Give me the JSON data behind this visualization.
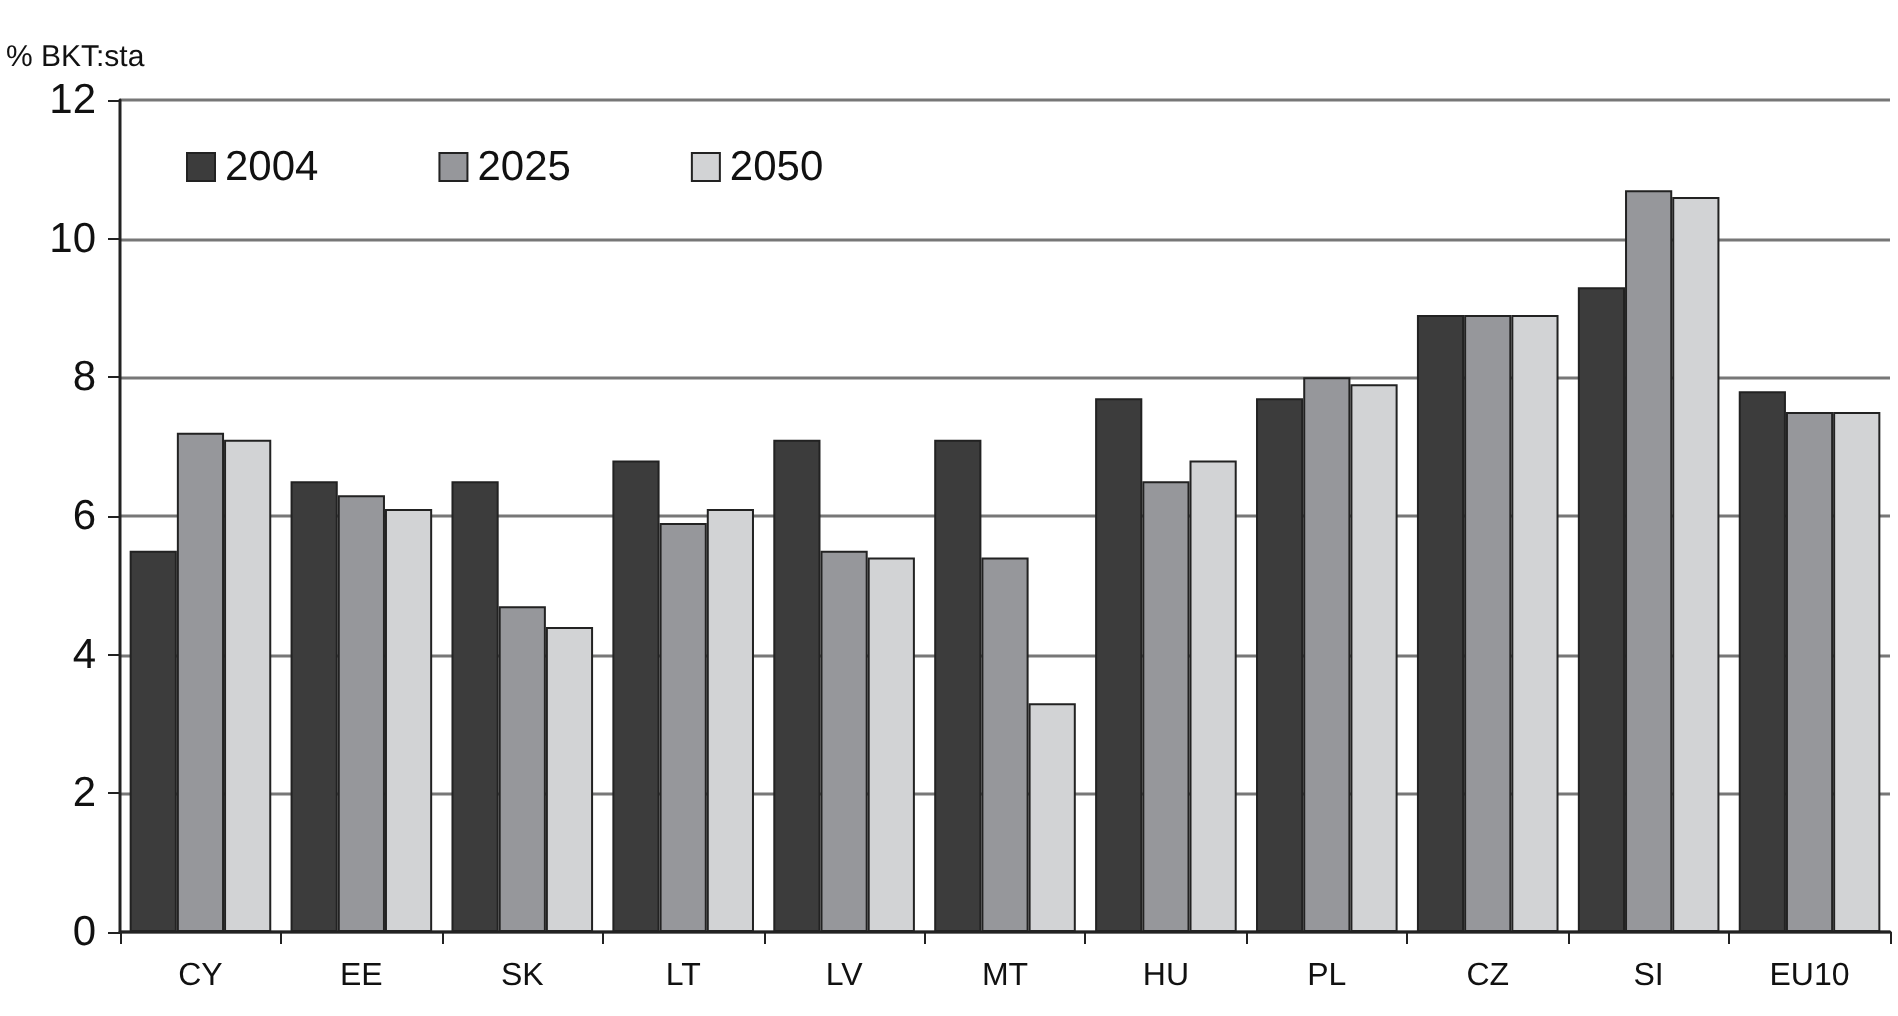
{
  "chart_data": {
    "type": "bar",
    "ylabel": "% BKT:sta",
    "categories": [
      "CY",
      "EE",
      "SK",
      "LT",
      "LV",
      "MT",
      "HU",
      "PL",
      "CZ",
      "SI",
      "EU10"
    ],
    "series": [
      {
        "name": "2004",
        "color": "#3c3c3c",
        "values": [
          5.5,
          6.5,
          6.5,
          6.8,
          7.1,
          7.1,
          7.7,
          7.7,
          8.9,
          9.3,
          7.8
        ]
      },
      {
        "name": "2025",
        "color": "#96979b",
        "values": [
          7.2,
          6.3,
          4.7,
          5.9,
          5.5,
          5.4,
          6.5,
          8.0,
          8.9,
          10.7,
          7.5
        ]
      },
      {
        "name": "2050",
        "color": "#d2d3d5",
        "values": [
          7.1,
          6.1,
          4.4,
          6.1,
          5.4,
          3.3,
          6.8,
          7.9,
          8.9,
          10.6,
          7.5
        ]
      }
    ],
    "ylim": [
      0,
      12
    ],
    "yticks": [
      0,
      2,
      4,
      6,
      8,
      10,
      12
    ],
    "grid": "y",
    "legend": "top left"
  }
}
